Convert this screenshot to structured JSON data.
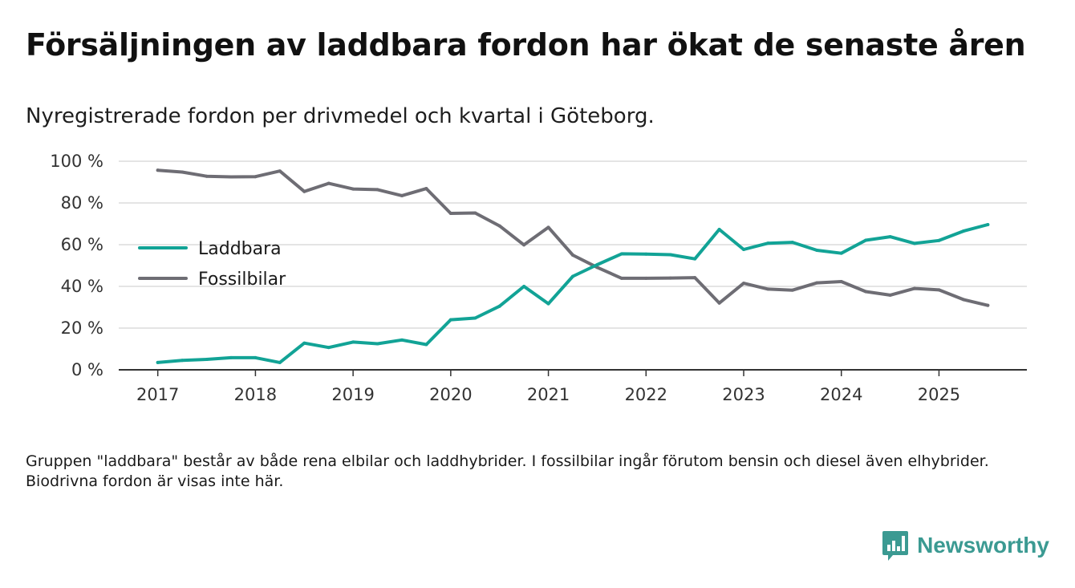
{
  "header": {
    "title": "Försäljningen av laddbara fordon har ökat de senaste åren",
    "subtitle": "Nyregistrerade fordon per drivmedel och kvartal i Göteborg."
  },
  "footnote": "Gruppen \"laddbara\" består av både rena elbilar och laddhybrider. I fossilbilar ingår förutom bensin och diesel även elhybrider. Biodrivna fordon är visas inte här.",
  "brand": {
    "name": "Newsworthy",
    "icon": "newsworthy-logo-icon",
    "color": "#3b9a92"
  },
  "chart_data": {
    "type": "line",
    "title": "Nyregistrerade fordon per drivmedel och kvartal i Göteborg.",
    "xlabel": "",
    "ylabel": "",
    "x": [
      2017.0,
      2017.25,
      2017.5,
      2017.75,
      2018.0,
      2018.25,
      2018.5,
      2018.75,
      2019.0,
      2019.25,
      2019.5,
      2019.75,
      2020.0,
      2020.25,
      2020.5,
      2020.75,
      2021.0,
      2021.25,
      2021.5,
      2021.75,
      2022.0,
      2022.25,
      2022.5,
      2022.75,
      2023.0,
      2023.25,
      2023.5,
      2023.75,
      2024.0,
      2024.25,
      2024.5,
      2024.75,
      2025.0,
      2025.25,
      2025.5
    ],
    "xlim": [
      2016.6,
      2025.9
    ],
    "x_ticks": [
      2017,
      2018,
      2019,
      2020,
      2021,
      2022,
      2023,
      2024,
      2025
    ],
    "x_tick_labels": [
      "2017",
      "2018",
      "2019",
      "2020",
      "2021",
      "2022",
      "2023",
      "2024",
      "2025"
    ],
    "ylim": [
      0,
      100
    ],
    "y_ticks": [
      0,
      20,
      40,
      60,
      80,
      100
    ],
    "y_tick_labels": [
      "0 %",
      "20 %",
      "40 %",
      "60 %",
      "80 %",
      "100 %"
    ],
    "grid": true,
    "legend_position": "left-middle",
    "series": [
      {
        "name": "Laddbara",
        "color": "#12a396",
        "values": [
          3.5,
          4.5,
          5.0,
          5.8,
          5.8,
          3.5,
          12.8,
          10.7,
          13.3,
          12.5,
          14.3,
          12.1,
          24.0,
          24.8,
          30.5,
          40.0,
          31.7,
          44.8,
          50.4,
          55.6,
          55.5,
          55.2,
          53.2,
          67.3,
          57.7,
          60.7,
          61.1,
          57.3,
          55.9,
          62.1,
          63.8,
          60.6,
          62.0,
          66.5,
          69.6
        ]
      },
      {
        "name": "Fossilbilar",
        "color": "#6e6d74",
        "values": [
          95.7,
          94.8,
          92.8,
          92.5,
          92.6,
          95.3,
          85.5,
          89.4,
          86.7,
          86.4,
          83.5,
          86.9,
          75.0,
          75.2,
          69.0,
          59.9,
          68.3,
          55.0,
          49.1,
          43.9,
          43.9,
          44.0,
          44.2,
          32.0,
          41.5,
          38.7,
          38.2,
          41.7,
          42.3,
          37.5,
          35.8,
          39.0,
          38.3,
          33.7,
          30.9
        ]
      }
    ]
  }
}
